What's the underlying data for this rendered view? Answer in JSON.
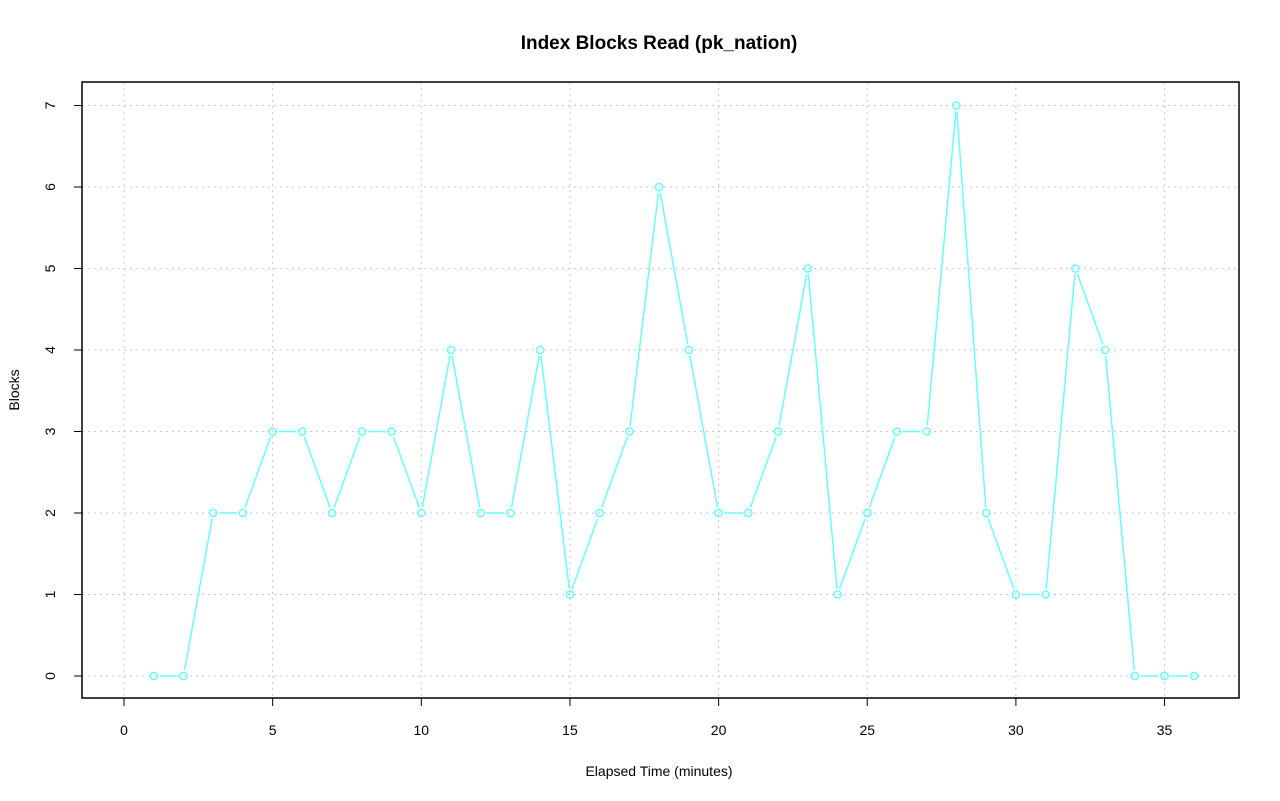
{
  "chart_data": {
    "type": "line",
    "title": "Index Blocks Read (pk_nation)",
    "xlabel": "Elapsed Time (minutes)",
    "ylabel": "Blocks",
    "xlim": [
      0,
      37
    ],
    "ylim": [
      0,
      7
    ],
    "x_ticks": [
      0,
      5,
      10,
      15,
      20,
      25,
      30,
      35
    ],
    "y_ticks": [
      0,
      1,
      2,
      3,
      4,
      5,
      6,
      7
    ],
    "grid": true,
    "series": [
      {
        "color": "#66ffff",
        "marker": "circle",
        "x": [
          1,
          2,
          3,
          4,
          5,
          6,
          7,
          8,
          9,
          10,
          11,
          12,
          13,
          14,
          15,
          16,
          17,
          18,
          19,
          20,
          21,
          22,
          23,
          24,
          25,
          26,
          27,
          28,
          29,
          30,
          31,
          32,
          33,
          34,
          35,
          36
        ],
        "y": [
          0,
          0,
          2,
          2,
          3,
          3,
          2,
          3,
          3,
          2,
          4,
          2,
          2,
          4,
          1,
          2,
          3,
          6,
          4,
          2,
          2,
          3,
          5,
          1,
          2,
          3,
          3,
          7,
          2,
          1,
          1,
          5,
          4,
          0,
          0,
          0
        ]
      }
    ]
  }
}
